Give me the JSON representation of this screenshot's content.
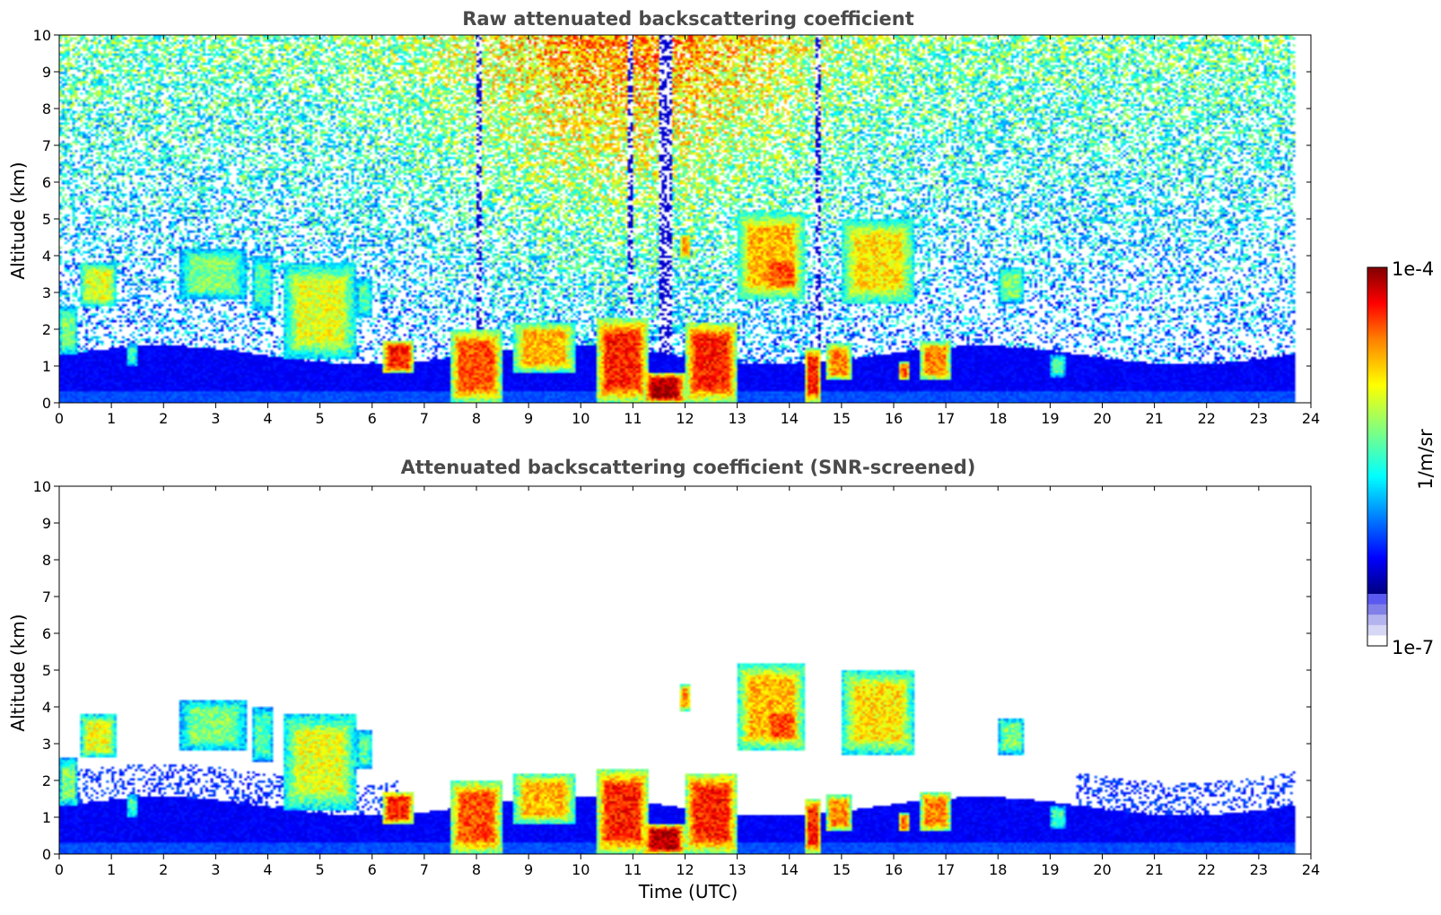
{
  "chart_data": [
    {
      "type": "heatmap",
      "title": "Raw attenuated backscattering coefficient",
      "xlabel": "",
      "ylabel": "Altitude (km)",
      "xlim": [
        0,
        24
      ],
      "ylim": [
        0,
        10
      ],
      "xticks": [
        "0",
        "1",
        "2",
        "3",
        "4",
        "5",
        "6",
        "7",
        "8",
        "9",
        "10",
        "11",
        "12",
        "13",
        "14",
        "15",
        "16",
        "17",
        "18",
        "19",
        "20",
        "21",
        "22",
        "23",
        "24"
      ],
      "yticks": [
        "0",
        "1",
        "2",
        "3",
        "4",
        "5",
        "6",
        "7",
        "8",
        "9",
        "10"
      ],
      "data_end_time": 23.7,
      "snr_screened": false,
      "boundary_layer_top_km": 1.3,
      "clouds": [
        {
          "t0": 0.0,
          "t1": 0.35,
          "z0": 1.3,
          "z1": 2.6,
          "level": 0.5
        },
        {
          "t0": 0.4,
          "t1": 1.1,
          "z0": 2.6,
          "z1": 3.8,
          "level": 0.6
        },
        {
          "t0": 1.3,
          "t1": 1.5,
          "z0": 1.0,
          "z1": 1.6,
          "level": 0.45
        },
        {
          "t0": 2.3,
          "t1": 3.6,
          "z0": 2.8,
          "z1": 4.2,
          "level": 0.5
        },
        {
          "t0": 3.7,
          "t1": 4.1,
          "z0": 2.5,
          "z1": 4.0,
          "level": 0.45
        },
        {
          "t0": 4.3,
          "t1": 5.7,
          "z0": 1.2,
          "z1": 3.8,
          "level": 0.6
        },
        {
          "t0": 5.7,
          "t1": 6.0,
          "z0": 2.3,
          "z1": 3.4,
          "level": 0.45
        },
        {
          "t0": 6.2,
          "t1": 6.8,
          "z0": 0.8,
          "z1": 1.7,
          "level": 0.85
        },
        {
          "t0": 7.5,
          "t1": 8.5,
          "z0": 0.0,
          "z1": 2.0,
          "level": 0.8
        },
        {
          "t0": 8.7,
          "t1": 9.9,
          "z0": 0.8,
          "z1": 2.2,
          "level": 0.7
        },
        {
          "t0": 10.3,
          "t1": 11.3,
          "z0": 0.0,
          "z1": 2.3,
          "level": 0.85
        },
        {
          "t0": 11.2,
          "t1": 12.0,
          "z0": 0.0,
          "z1": 0.8,
          "level": 0.95
        },
        {
          "t0": 12.0,
          "t1": 13.0,
          "z0": 0.0,
          "z1": 2.2,
          "level": 0.85
        },
        {
          "t0": 11.9,
          "t1": 12.1,
          "z0": 3.9,
          "z1": 4.6,
          "level": 0.75
        },
        {
          "t0": 13.0,
          "t1": 14.3,
          "z0": 2.8,
          "z1": 5.2,
          "level": 0.7
        },
        {
          "t0": 13.5,
          "t1": 14.2,
          "z0": 3.0,
          "z1": 4.0,
          "level": 0.8
        },
        {
          "t0": 14.3,
          "t1": 14.6,
          "z0": 0.0,
          "z1": 1.5,
          "level": 0.85
        },
        {
          "t0": 14.7,
          "t1": 15.2,
          "z0": 0.6,
          "z1": 1.6,
          "level": 0.75
        },
        {
          "t0": 15.0,
          "t1": 16.4,
          "z0": 2.7,
          "z1": 5.0,
          "level": 0.65
        },
        {
          "t0": 16.1,
          "t1": 16.3,
          "z0": 0.6,
          "z1": 1.1,
          "level": 0.8
        },
        {
          "t0": 16.5,
          "t1": 17.1,
          "z0": 0.6,
          "z1": 1.7,
          "level": 0.75
        },
        {
          "t0": 18.0,
          "t1": 18.5,
          "z0": 2.7,
          "z1": 3.7,
          "level": 0.5
        },
        {
          "t0": 19.0,
          "t1": 19.3,
          "z0": 0.7,
          "z1": 1.3,
          "level": 0.45
        }
      ],
      "attenuated_columns": [
        {
          "t0": 7.98,
          "t1": 8.1
        },
        {
          "t0": 10.9,
          "t1": 11.02
        },
        {
          "t0": 11.5,
          "t1": 11.75
        },
        {
          "t0": 14.5,
          "t1": 14.62
        }
      ]
    },
    {
      "type": "heatmap",
      "title": "Attenuated backscattering coefficient (SNR-screened)",
      "xlabel": "Time (UTC)",
      "ylabel": "Altitude (km)",
      "xlim": [
        0,
        24
      ],
      "ylim": [
        0,
        10
      ],
      "xticks": [
        "0",
        "1",
        "2",
        "3",
        "4",
        "5",
        "6",
        "7",
        "8",
        "9",
        "10",
        "11",
        "12",
        "13",
        "14",
        "15",
        "16",
        "17",
        "18",
        "19",
        "20",
        "21",
        "22",
        "23",
        "24"
      ],
      "yticks": [
        "0",
        "1",
        "2",
        "3",
        "4",
        "5",
        "6",
        "7",
        "8",
        "9",
        "10"
      ],
      "data_end_time": 23.7,
      "snr_screened": true
    }
  ],
  "colorbar": {
    "max_label": "1e-4",
    "min_label": "1e-7",
    "unit_label": "1/m/sr",
    "scale": "log",
    "colormap": [
      "#000080",
      "#0000ff",
      "#0080ff",
      "#00ffff",
      "#80ff80",
      "#ffff00",
      "#ff8000",
      "#ff0000",
      "#800000"
    ],
    "low_shades": [
      "#ffffff",
      "#d6d6f5",
      "#b3b3ee",
      "#8080e8",
      "#5a5af0"
    ]
  }
}
